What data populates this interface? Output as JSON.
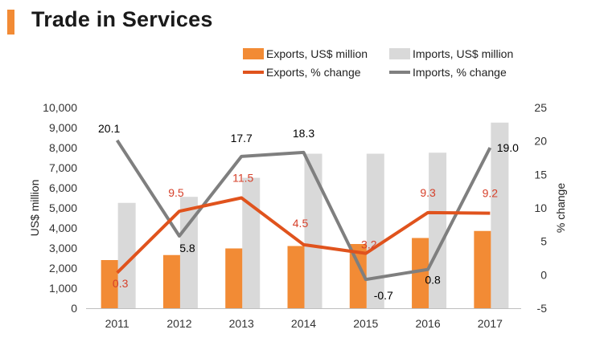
{
  "header": {
    "title": "Trade in Services",
    "accent": "#f28b35"
  },
  "colors": {
    "exports_bar": "#f28b35",
    "imports_bar": "#d9d9d9",
    "exports_line": "#e0531d",
    "imports_line": "#7f7f7f",
    "exports_label": "#d6402a",
    "imports_label": "#000000",
    "axis_text": "#333333"
  },
  "chart_data": {
    "type": "bar",
    "title": "Trade in Services",
    "categories": [
      "2011",
      "2012",
      "2013",
      "2014",
      "2015",
      "2016",
      "2017"
    ],
    "ylabel": "US$ million",
    "ylim": [
      0,
      10000
    ],
    "y_ticks": [
      "0",
      "1,000",
      "2,000",
      "3,000",
      "4,000",
      "5,000",
      "6,000",
      "7,000",
      "8,000",
      "9,000",
      "10,000"
    ],
    "y2label": "% change",
    "y2lim": [
      -5,
      25
    ],
    "y2_ticks": [
      "-5",
      "0",
      "5",
      "10",
      "15",
      "20",
      "25"
    ],
    "series": [
      {
        "name": "Exports, US$ million",
        "kind": "bar",
        "axis": "left",
        "values": [
          2400,
          2650,
          2980,
          3100,
          3200,
          3500,
          3850
        ]
      },
      {
        "name": "Imports, US$ million",
        "kind": "bar",
        "axis": "left",
        "values": [
          5250,
          5550,
          6500,
          7700,
          7700,
          7750,
          9250
        ]
      },
      {
        "name": "Exports, % change",
        "kind": "line",
        "axis": "right",
        "values": [
          0.3,
          9.5,
          11.5,
          4.5,
          3.2,
          9.3,
          9.2
        ],
        "labels": [
          "0.3",
          "9.5",
          "11.5",
          "4.5",
          "3.2",
          "9.3",
          "9.2"
        ]
      },
      {
        "name": "Imports, % change",
        "kind": "line",
        "axis": "right",
        "values": [
          20.1,
          5.8,
          17.7,
          18.3,
          -0.7,
          0.8,
          19.0
        ],
        "labels": [
          "20.1",
          "5.8",
          "17.7",
          "18.3",
          "-0.7",
          "0.8",
          "19.0"
        ]
      }
    ],
    "legend": [
      {
        "label": "Exports, US$ million",
        "symbol": "box",
        "color_key": "exports_bar"
      },
      {
        "label": "Imports, US$ million",
        "symbol": "box",
        "color_key": "imports_bar"
      },
      {
        "label": "Exports, % change",
        "symbol": "line",
        "color_key": "exports_line"
      },
      {
        "label": "Imports, % change",
        "symbol": "line",
        "color_key": "imports_line"
      }
    ]
  }
}
